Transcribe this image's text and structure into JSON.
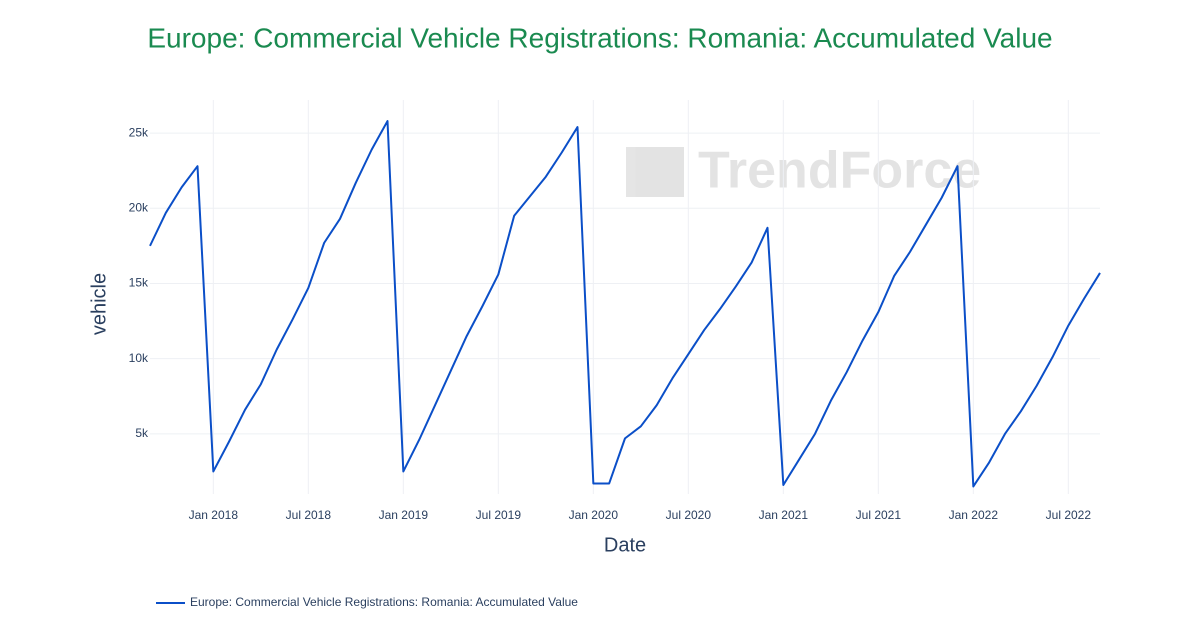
{
  "chart_data": {
    "type": "line",
    "title": "Europe: Commercial Vehicle Registrations: Romania: Accumulated Value",
    "watermark": "TrendForce",
    "x_label": "Date",
    "y_label": "vehicle",
    "x": [
      "2017-09",
      "2017-10",
      "2017-11",
      "2017-12",
      "2018-01",
      "2018-02",
      "2018-03",
      "2018-04",
      "2018-05",
      "2018-06",
      "2018-07",
      "2018-08",
      "2018-09",
      "2018-10",
      "2018-11",
      "2018-12",
      "2019-01",
      "2019-02",
      "2019-03",
      "2019-04",
      "2019-05",
      "2019-06",
      "2019-07",
      "2019-08",
      "2019-09",
      "2019-10",
      "2019-11",
      "2019-12",
      "2020-01",
      "2020-02",
      "2020-03",
      "2020-04",
      "2020-05",
      "2020-06",
      "2020-07",
      "2020-08",
      "2020-09",
      "2020-10",
      "2020-11",
      "2020-12",
      "2021-01",
      "2021-02",
      "2021-03",
      "2021-04",
      "2021-05",
      "2021-06",
      "2021-07",
      "2021-08",
      "2021-09",
      "2021-10",
      "2021-11",
      "2021-12",
      "2022-01",
      "2022-02",
      "2022-03",
      "2022-04",
      "2022-05",
      "2022-06",
      "2022-07",
      "2022-08",
      "2022-09"
    ],
    "series": [
      {
        "name": "Europe: Commercial Vehicle Registrations: Romania: Accumulated Value",
        "color": "#0b4fc8",
        "values": [
          17500,
          19700,
          21400,
          22800,
          2500,
          4500,
          6600,
          8300,
          10600,
          12600,
          14700,
          17700,
          19300,
          21700,
          23900,
          25800,
          2500,
          4600,
          6900,
          9200,
          11500,
          13500,
          15600,
          19500,
          20800,
          22100,
          23700,
          25400,
          1700,
          1700,
          4700,
          5500,
          6900,
          8700,
          10300,
          11900,
          13300,
          14800,
          16400,
          18700,
          1600,
          3300,
          5000,
          7200,
          9100,
          11200,
          13100,
          15500,
          17100,
          18900,
          20700,
          22800,
          1500,
          3100,
          5000,
          6500,
          8200,
          10100,
          12200,
          14000,
          15700
        ]
      }
    ],
    "xlim": [
      "2017-09",
      "2022-09"
    ],
    "xticks": [
      {
        "value": "2018-01",
        "label": "Jan 2018"
      },
      {
        "value": "2018-07",
        "label": "Jul 2018"
      },
      {
        "value": "2019-01",
        "label": "Jan 2019"
      },
      {
        "value": "2019-07",
        "label": "Jul 2019"
      },
      {
        "value": "2020-01",
        "label": "Jan 2020"
      },
      {
        "value": "2020-07",
        "label": "Jul 2020"
      },
      {
        "value": "2021-01",
        "label": "Jan 2021"
      },
      {
        "value": "2021-07",
        "label": "Jul 2021"
      },
      {
        "value": "2022-01",
        "label": "Jan 2022"
      },
      {
        "value": "2022-07",
        "label": "Jul 2022"
      }
    ],
    "ylim": [
      1000,
      27200
    ],
    "yticks": [
      {
        "value": 5000,
        "label": "5k"
      },
      {
        "value": 10000,
        "label": "10k"
      },
      {
        "value": 15000,
        "label": "15k"
      },
      {
        "value": 20000,
        "label": "20k"
      },
      {
        "value": 25000,
        "label": "25k"
      }
    ],
    "grid": true
  }
}
